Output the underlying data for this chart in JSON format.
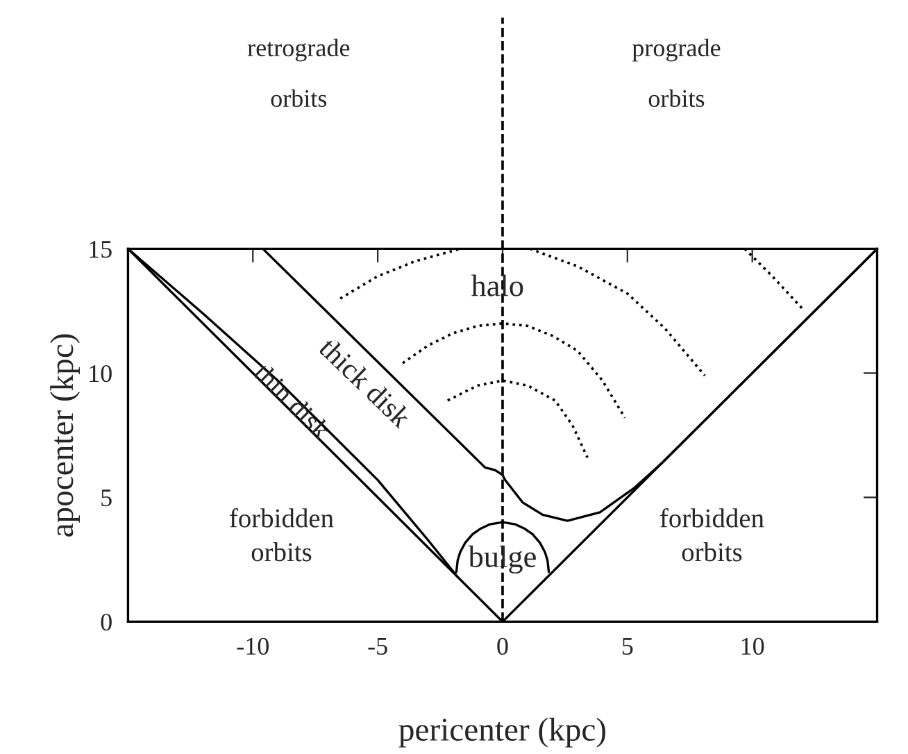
{
  "chart_data": {
    "type": "line",
    "xlabel": "pericenter (kpc)",
    "ylabel": "apocenter (kpc)",
    "xlim": [
      -15,
      15
    ],
    "ylim": [
      0,
      15
    ],
    "xticks": [
      -10,
      -5,
      0,
      5,
      10
    ],
    "yticks": [
      0,
      5,
      10,
      15
    ],
    "grid": false,
    "series": [
      {
        "color": "#000000",
        "line_style": "solid",
        "x": [
          -15,
          0,
          15
        ],
        "values": [
          15,
          0,
          15
        ]
      },
      {
        "color": "#000000",
        "line_style": "solid",
        "x": [
          -15,
          -12,
          -9,
          -7,
          -5,
          -3,
          -1.8
        ],
        "values": [
          15,
          12.4,
          9.7,
          7.7,
          5.7,
          3.3,
          1.8
        ]
      },
      {
        "color": "#000000",
        "line_style": "solid",
        "x": [
          -9.6,
          -0.7,
          -0.3,
          0,
          0.1,
          0.8,
          1.6,
          2.6,
          3.9,
          5.3,
          6.4,
          7.5,
          15
        ],
        "values": [
          15,
          6.2,
          6.1,
          5.9,
          5.7,
          4.8,
          4.3,
          4.06,
          4.4,
          5.4,
          6.4,
          7.5,
          15
        ]
      },
      {
        "color": "#000000",
        "line_style": "solid",
        "x": [
          -1.85,
          -1.8,
          -1.7,
          -1.5,
          -1.2,
          -0.9,
          -0.5,
          0,
          0.5,
          0.9,
          1.2,
          1.5,
          1.7,
          1.8,
          1.85
        ],
        "values": [
          2.0,
          2.46,
          2.79,
          3.17,
          3.52,
          3.73,
          3.92,
          4.0,
          3.92,
          3.73,
          3.52,
          3.17,
          2.79,
          2.46,
          2.0
        ]
      },
      {
        "color": "#000000",
        "line_style": "dotted",
        "x": [
          -6.5,
          -5,
          -3.5,
          -1.7,
          0,
          1.1,
          3,
          5,
          6.5,
          8.1
        ],
        "values": [
          13.0,
          13.9,
          14.5,
          15,
          null,
          15,
          14.3,
          13.2,
          11.8,
          9.9
        ]
      },
      {
        "color": "#000000",
        "line_style": "dotted",
        "x": [
          -4.0,
          -3,
          -2,
          -1,
          0,
          1,
          2,
          3,
          4,
          4.9
        ],
        "values": [
          10.4,
          11.1,
          11.6,
          11.9,
          12.0,
          11.9,
          11.5,
          10.9,
          9.7,
          8.2
        ]
      },
      {
        "color": "#000000",
        "line_style": "dotted",
        "x": [
          -2.2,
          -1,
          0,
          1,
          2.1,
          2.8,
          3.4
        ],
        "values": [
          8.9,
          9.5,
          9.7,
          9.5,
          8.9,
          7.9,
          6.6
        ]
      },
      {
        "color": "#000000",
        "line_style": "dotted",
        "x": [
          9.7,
          10.8,
          12.0
        ],
        "values": [
          15,
          13.9,
          12.6
        ]
      }
    ],
    "ref_lines": [
      {
        "axis": "x",
        "value": 0,
        "color": "#000000",
        "line_style": "dashed"
      }
    ],
    "annotations": [
      "retrograde\norbits",
      "prograde\norbits",
      "thick disk",
      "forbidden\norbits",
      "forbidden\norbits",
      {
        "text": "halo",
        "x": -0.2,
        "y": 13.4
      },
      {
        "text": "thin disk",
        "x": -8.5,
        "y": 8.8
      },
      {
        "text": "bulge",
        "x": 0,
        "y": 2.5
      }
    ]
  }
}
